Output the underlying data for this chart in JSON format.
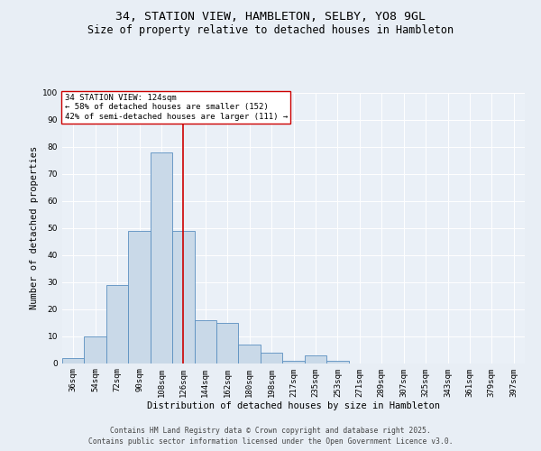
{
  "title_line1": "34, STATION VIEW, HAMBLETON, SELBY, YO8 9GL",
  "title_line2": "Size of property relative to detached houses in Hambleton",
  "xlabel": "Distribution of detached houses by size in Hambleton",
  "ylabel": "Number of detached properties",
  "categories": [
    "36sqm",
    "54sqm",
    "72sqm",
    "90sqm",
    "108sqm",
    "126sqm",
    "144sqm",
    "162sqm",
    "180sqm",
    "198sqm",
    "217sqm",
    "235sqm",
    "253sqm",
    "271sqm",
    "289sqm",
    "307sqm",
    "325sqm",
    "343sqm",
    "361sqm",
    "379sqm",
    "397sqm"
  ],
  "values": [
    2,
    10,
    29,
    49,
    78,
    49,
    16,
    15,
    7,
    4,
    1,
    3,
    1,
    0,
    0,
    0,
    0,
    0,
    0,
    0,
    0
  ],
  "bar_color": "#c9d9e8",
  "bar_edge_color": "#5a8fc0",
  "red_line_x": 5,
  "red_line_color": "#cc0000",
  "annotation_title": "34 STATION VIEW: 124sqm",
  "annotation_line1": "← 58% of detached houses are smaller (152)",
  "annotation_line2": "42% of semi-detached houses are larger (111) →",
  "annotation_box_color": "#ffffff",
  "annotation_box_edge": "#cc0000",
  "ylim": [
    0,
    100
  ],
  "yticks": [
    0,
    10,
    20,
    30,
    40,
    50,
    60,
    70,
    80,
    90,
    100
  ],
  "footer_line1": "Contains HM Land Registry data © Crown copyright and database right 2025.",
  "footer_line2": "Contains public sector information licensed under the Open Government Licence v3.0.",
  "bg_color": "#e8eef5",
  "plot_bg_color": "#eaf0f7",
  "title_fontsize": 9.5,
  "subtitle_fontsize": 8.5,
  "axis_label_fontsize": 7.5,
  "tick_fontsize": 6.5,
  "ann_fontsize": 6.5,
  "footer_fontsize": 5.8
}
